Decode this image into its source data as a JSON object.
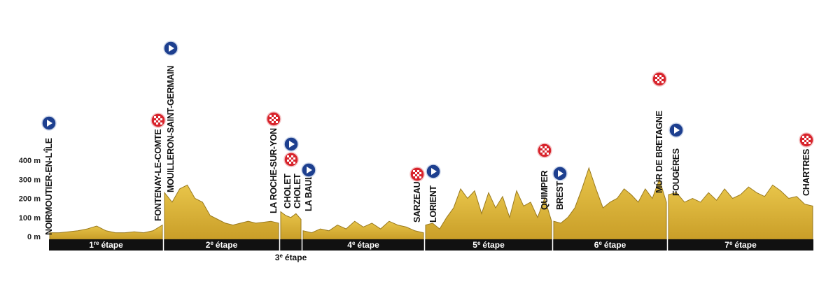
{
  "chart_data": {
    "type": "area",
    "ylim": [
      0,
      400
    ],
    "yticks": [
      {
        "value": 0,
        "label": "0 m"
      },
      {
        "value": 100,
        "label": "100 m"
      },
      {
        "value": 200,
        "label": "200 m"
      },
      {
        "value": 300,
        "label": "300 m"
      },
      {
        "value": 400,
        "label": "400 m"
      }
    ],
    "color": "#d8b23c",
    "stages": [
      {
        "number": "1",
        "suffix": "re",
        "word": "étape",
        "values": [
          20,
          20,
          25,
          30,
          40,
          55,
          30,
          20,
          20,
          25,
          20,
          30,
          60
        ]
      },
      {
        "number": "2",
        "suffix": "e",
        "word": "étape",
        "values": [
          230,
          180,
          250,
          270,
          200,
          180,
          110,
          90,
          70,
          60,
          70,
          80,
          70,
          75,
          80,
          70
        ]
      },
      {
        "number": "3",
        "suffix": "e",
        "word": "étape",
        "values": [
          130,
          110,
          100,
          120,
          90
        ]
      },
      {
        "number": "4",
        "suffix": "e",
        "word": "étape",
        "values": [
          30,
          20,
          40,
          30,
          60,
          40,
          80,
          50,
          70,
          40,
          80,
          60,
          50,
          30,
          20
        ]
      },
      {
        "number": "5",
        "suffix": "e",
        "word": "étape",
        "values": [
          60,
          70,
          40,
          100,
          150,
          250,
          200,
          240,
          120,
          230,
          150,
          210,
          100,
          240,
          160,
          180,
          100,
          200,
          80
        ]
      },
      {
        "number": "6",
        "suffix": "e",
        "word": "étape",
        "values": [
          80,
          70,
          100,
          150,
          250,
          360,
          250,
          150,
          180,
          200,
          250,
          220,
          180,
          250,
          200,
          300,
          180
        ]
      },
      {
        "number": "7",
        "suffix": "e",
        "word": "étape",
        "values": [
          220,
          230,
          180,
          200,
          180,
          230,
          190,
          250,
          200,
          220,
          260,
          230,
          210,
          270,
          240,
          200,
          210,
          170,
          160
        ]
      }
    ],
    "places": [
      {
        "label": "NOIRMOUTIER-EN-L'ÎLE",
        "icon": "start"
      },
      {
        "label": "FONTENAY-LE-COMTE",
        "icon": "finish"
      },
      {
        "label": "MOUILLERON-SAINT-GERMAIN",
        "icon": "start"
      },
      {
        "label": "LA ROCHE-SUR-YON",
        "icon": "finish"
      },
      {
        "label": "CHOLET",
        "icon": "start"
      },
      {
        "label": "CHOLET",
        "icon": "finish"
      },
      {
        "label": "LA BAULE",
        "icon": "start"
      },
      {
        "label": "SARZEAU",
        "icon": "finish"
      },
      {
        "label": "LORIENT",
        "icon": "start"
      },
      {
        "label": "QUIMPER",
        "icon": "finish"
      },
      {
        "label": "BREST",
        "icon": "start"
      },
      {
        "label": "MÛR DE BRETAGNE",
        "icon": "finish"
      },
      {
        "label": "FOUGÈRES",
        "icon": "start"
      },
      {
        "label": "CHARTRES",
        "icon": "finish"
      }
    ]
  }
}
